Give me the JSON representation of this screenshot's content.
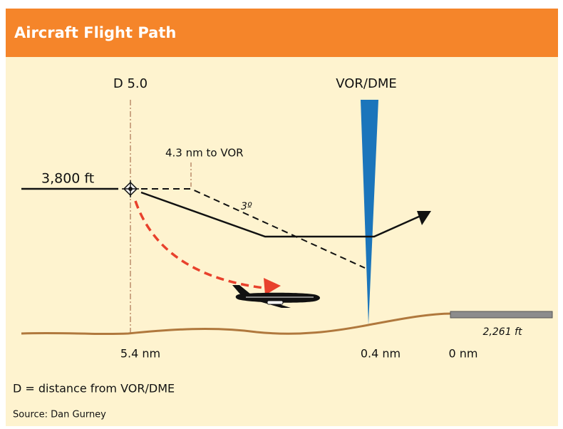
{
  "header": {
    "title": "Aircraft Flight Path"
  },
  "labels": {
    "waypoint": "D 5.0",
    "station": "VOR/DME",
    "distance_to_vor": "4.3 nm to VOR",
    "altitude": "3,800 ft",
    "angle": "3º",
    "runway_elevation": "2,261 ft"
  },
  "distances": [
    "5.4 nm",
    "0.4 nm",
    "0 nm"
  ],
  "footnote": "D = distance from VOR/DME",
  "source": "Source: Dan Gurney"
}
